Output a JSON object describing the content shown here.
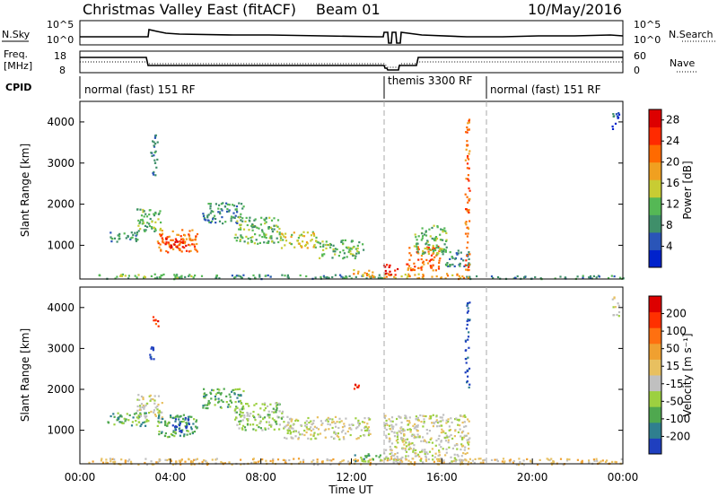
{
  "header": {
    "title": "Christmas Valley East (fitACF)",
    "beam": "Beam 01",
    "date": "10/May/2016"
  },
  "strip": {
    "nsky_label": "N.Sky",
    "nsky_ticks": [
      "10^5",
      "10^0"
    ],
    "nsearch_label": "N.Search",
    "nsearch_ticks": [
      "10^5",
      "10^0"
    ],
    "freq_label_1": "Freq.",
    "freq_label_2": "[MHz]",
    "freq_ticks": [
      "18",
      "8"
    ],
    "nave_label": "Nave",
    "nave_ticks": [
      "60",
      "0"
    ],
    "cpid_label": "CPID"
  },
  "programs": [
    {
      "label": "normal (fast) 151 RF",
      "start": "00:00",
      "end": "13:30"
    },
    {
      "label": "themis 3300 RF",
      "start": "13:30",
      "end": "18:00"
    },
    {
      "label": "normal (fast) 151 RF",
      "start": "18:00",
      "end": "24:00"
    }
  ],
  "colors": {
    "power": [
      "#0022cc",
      "#2a55b8",
      "#3f8f6a",
      "#55b855",
      "#c8cc33",
      "#f0a020",
      "#ff6a00",
      "#ff2a00",
      "#dd0000"
    ],
    "velocity": [
      "#1f3fbf",
      "#2f7f8f",
      "#4fa84f",
      "#9cd040",
      "#c0c0c0",
      "#e8c060",
      "#f0a030",
      "#ff7010",
      "#ff3000",
      "#dd0000"
    ]
  },
  "chart_data": [
    {
      "type": "heatmap",
      "name": "power",
      "ylabel": "Slant Range [km]",
      "xlabel": "",
      "xlim": [
        0,
        24
      ],
      "ylim": [
        180,
        4500
      ],
      "yticks": [
        "1000",
        "2000",
        "3000",
        "4000"
      ],
      "colorbar": {
        "label": "Power [dB]",
        "ticks": [
          "4",
          "8",
          "12",
          "16",
          "20",
          "24",
          "28"
        ],
        "range": [
          0,
          30
        ]
      },
      "regions": [
        {
          "t0": 0.8,
          "t1": 5.0,
          "r0": 200,
          "r1": 330,
          "level": 3
        },
        {
          "t0": 5.0,
          "t1": 13.4,
          "r0": 200,
          "r1": 300,
          "level": 2
        },
        {
          "t0": 13.4,
          "t1": 17.0,
          "r0": 200,
          "r1": 330,
          "level": 5
        },
        {
          "t0": 17.0,
          "t1": 24.0,
          "r0": 200,
          "r1": 280,
          "level": 2
        },
        {
          "t0": 1.2,
          "t1": 2.6,
          "r0": 1100,
          "r1": 1350,
          "level": 2
        },
        {
          "t0": 2.5,
          "t1": 3.6,
          "r0": 1300,
          "r1": 1900,
          "level": 3
        },
        {
          "t0": 3.4,
          "t1": 5.2,
          "r0": 850,
          "r1": 1400,
          "level": 6
        },
        {
          "t0": 3.7,
          "t1": 4.7,
          "r0": 950,
          "r1": 1200,
          "level": 8
        },
        {
          "t0": 5.4,
          "t1": 7.2,
          "r0": 1550,
          "r1": 2050,
          "level": 2
        },
        {
          "t0": 6.8,
          "t1": 8.8,
          "r0": 1050,
          "r1": 1700,
          "level": 3
        },
        {
          "t0": 8.8,
          "t1": 10.5,
          "r0": 950,
          "r1": 1350,
          "level": 4
        },
        {
          "t0": 10.5,
          "t1": 12.5,
          "r0": 700,
          "r1": 1150,
          "level": 3
        },
        {
          "t0": 12.0,
          "t1": 13.2,
          "r0": 250,
          "r1": 420,
          "level": 5
        },
        {
          "t0": 13.4,
          "t1": 14.1,
          "r0": 300,
          "r1": 550,
          "level": 8
        },
        {
          "t0": 14.4,
          "t1": 15.9,
          "r0": 400,
          "r1": 1000,
          "level": 6
        },
        {
          "t0": 14.7,
          "t1": 16.2,
          "r0": 800,
          "r1": 1500,
          "level": 3
        },
        {
          "t0": 16.0,
          "t1": 17.2,
          "r0": 500,
          "r1": 900,
          "level": 2
        },
        {
          "t0": 3.1,
          "t1": 3.4,
          "r0": 2700,
          "r1": 3700,
          "level": 2
        },
        {
          "t0": 17.0,
          "t1": 17.2,
          "r0": 200,
          "r1": 4200,
          "level": 6
        },
        {
          "t0": 23.5,
          "t1": 23.8,
          "r0": 3800,
          "r1": 4300,
          "level": 1
        }
      ]
    },
    {
      "type": "heatmap",
      "name": "velocity",
      "ylabel": "Slant Range [km]",
      "xlabel": "Time UT",
      "xlim": [
        0,
        24
      ],
      "ylim": [
        180,
        4500
      ],
      "xticks": [
        "00:00",
        "04:00",
        "08:00",
        "12:00",
        "16:00",
        "20:00",
        "00:00"
      ],
      "yticks": [
        "1000",
        "2000",
        "3000",
        "4000"
      ],
      "colorbar": {
        "label": "Velocity [m s⁻¹]",
        "ticks": [
          "200",
          "100",
          "50",
          "15",
          "-15",
          "-50",
          "-100",
          "-200"
        ],
        "range": [
          -250,
          250
        ]
      },
      "regions": [
        {
          "t0": 0.3,
          "t1": 24.0,
          "r0": 180,
          "r1": 330,
          "level": 5
        },
        {
          "t0": 1.2,
          "t1": 3.0,
          "r0": 1100,
          "r1": 1450,
          "level": 2
        },
        {
          "t0": 2.5,
          "t1": 3.6,
          "r0": 1300,
          "r1": 1900,
          "level": 4
        },
        {
          "t0": 3.4,
          "t1": 5.2,
          "r0": 850,
          "r1": 1400,
          "level": 2
        },
        {
          "t0": 4.0,
          "t1": 4.8,
          "r0": 950,
          "r1": 1350,
          "level": 0
        },
        {
          "t0": 5.4,
          "t1": 7.2,
          "r0": 1550,
          "r1": 2050,
          "level": 2
        },
        {
          "t0": 6.8,
          "t1": 9.0,
          "r0": 1000,
          "r1": 1700,
          "level": 3
        },
        {
          "t0": 9.0,
          "t1": 12.8,
          "r0": 800,
          "r1": 1350,
          "level": 4
        },
        {
          "t0": 12.0,
          "t1": 13.3,
          "r0": 250,
          "r1": 450,
          "level": 2
        },
        {
          "t0": 13.4,
          "t1": 17.2,
          "r0": 250,
          "r1": 1400,
          "level": 4
        },
        {
          "t0": 3.0,
          "t1": 3.3,
          "r0": 2700,
          "r1": 3100,
          "level": 0
        },
        {
          "t0": 3.2,
          "t1": 3.5,
          "r0": 3500,
          "r1": 3800,
          "level": 8
        },
        {
          "t0": 12.0,
          "t1": 12.3,
          "r0": 2000,
          "r1": 2200,
          "level": 8
        },
        {
          "t0": 17.0,
          "t1": 17.2,
          "r0": 2000,
          "r1": 4200,
          "level": 0
        },
        {
          "t0": 23.5,
          "t1": 23.8,
          "r0": 3800,
          "r1": 4300,
          "level": 4
        }
      ]
    }
  ]
}
